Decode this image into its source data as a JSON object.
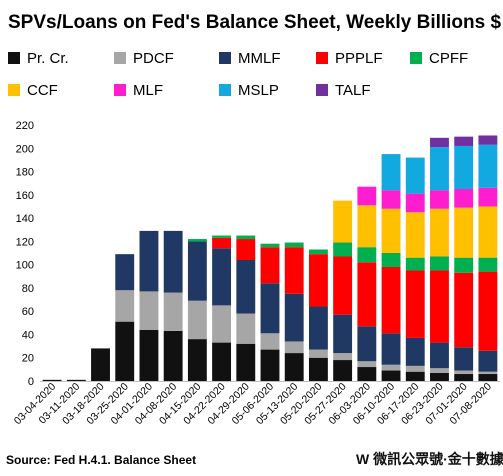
{
  "chart_data": {
    "type": "bar",
    "stacked": true,
    "title": "SPVs/Loans  on Fed's Balance Sheet, Weekly Billions $",
    "xlabel": "",
    "ylabel": "",
    "ylim": [
      0,
      220
    ],
    "yticks": [
      0,
      20,
      40,
      60,
      80,
      100,
      120,
      140,
      160,
      180,
      200,
      220
    ],
    "grid": false,
    "legend_position": "top",
    "categories": [
      "03-04-2020",
      "03-11-2020",
      "03-18-2020",
      "03-25-2020",
      "04-01-2020",
      "04-08-2020",
      "04-15-2020",
      "04-22-2020",
      "04-29-2020",
      "05-06-2020",
      "05-13-2020",
      "05-20-2020",
      "05-27-2020",
      "06-03-2020",
      "06-10-2020",
      "06-17-2020",
      "06-23-2020",
      "07-01-2020",
      "07-08-2020"
    ],
    "category_labels_shown": [
      "03-04-2020",
      "03-11-2020",
      "03-18-2020",
      "03-25-2020",
      "04-01-2020",
      "04-08-2020",
      "04-15-2020",
      "04-22-2020",
      "04-29-2020",
      "05-06-2020",
      "05-13-2020",
      "05-20-2020",
      "05-27-2020",
      "06-03-2020",
      "06-10-2020",
      "06-17-2020",
      "06-23-2020",
      "07-01-2020",
      "07-08-2020"
    ],
    "series": [
      {
        "name": "Pr. Cr.",
        "color": "#111111",
        "values": [
          1,
          1,
          28,
          51,
          44,
          43,
          36,
          33,
          32,
          27,
          24,
          20,
          18,
          12,
          9,
          8,
          7,
          6,
          6
        ]
      },
      {
        "name": "PDCF",
        "color": "#a6a6a6",
        "values": [
          0,
          0,
          0,
          27,
          33,
          33,
          33,
          32,
          26,
          14,
          10,
          7,
          6,
          5,
          5,
          5,
          4,
          3,
          2
        ]
      },
      {
        "name": "MMLF",
        "color": "#1f3864",
        "values": [
          0,
          0,
          0,
          31,
          52,
          53,
          51,
          49,
          46,
          43,
          41,
          37,
          33,
          30,
          27,
          24,
          22,
          20,
          18
        ]
      },
      {
        "name": "PPPLF",
        "color": "#ff0000",
        "values": [
          0,
          0,
          0,
          0,
          0,
          0,
          0,
          9,
          18,
          31,
          40,
          45,
          50,
          55,
          57,
          58,
          62,
          64,
          68
        ]
      },
      {
        "name": "CPFF",
        "color": "#00b050",
        "values": [
          0,
          0,
          0,
          0,
          0,
          0,
          2,
          2,
          3,
          3,
          4,
          4,
          12,
          13,
          12,
          11,
          12,
          13,
          12
        ]
      },
      {
        "name": "CCF",
        "color": "#ffc000",
        "values": [
          0,
          0,
          0,
          0,
          0,
          0,
          0,
          0,
          0,
          0,
          0,
          0,
          36,
          36,
          38,
          39,
          41,
          43,
          44
        ]
      },
      {
        "name": "MLF",
        "color": "#ff1ecf",
        "values": [
          0,
          0,
          0,
          0,
          0,
          0,
          0,
          0,
          0,
          0,
          0,
          0,
          0,
          16,
          16,
          16,
          16,
          16,
          16
        ]
      },
      {
        "name": "MSLP",
        "color": "#12a8e0",
        "values": [
          0,
          0,
          0,
          0,
          0,
          0,
          0,
          0,
          0,
          0,
          0,
          0,
          0,
          0,
          31,
          31,
          37,
          37,
          37
        ]
      },
      {
        "name": "TALF",
        "color": "#7030a0",
        "values": [
          0,
          0,
          0,
          0,
          0,
          0,
          0,
          0,
          0,
          0,
          0,
          0,
          0,
          0,
          0,
          0,
          8,
          8,
          8
        ]
      }
    ],
    "annotations": {
      "source": "Source: Fed H.4.1. Balance Sheet",
      "watermark": "W  微訊公眾號·金十數據"
    }
  }
}
